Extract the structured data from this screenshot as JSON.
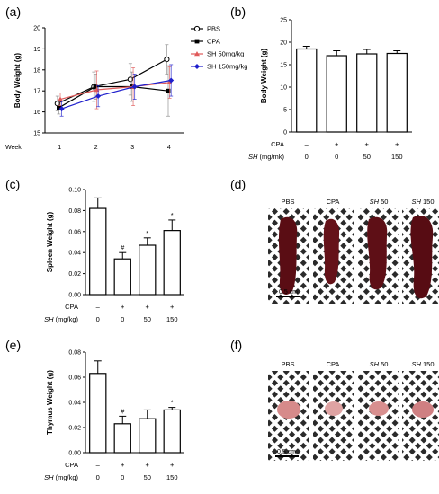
{
  "panel_labels": [
    "(a)",
    "(b)",
    "(c)",
    "(d)",
    "(e)",
    "(f)"
  ],
  "colors": {
    "PBS": "#000000",
    "CPA": "#000000",
    "SH50": "#e05a5a",
    "SH150": "#1f1fcc",
    "error_bar": "#8a8a8a",
    "grid_white": "#ffffff",
    "tissue_dark": "#5a0d14",
    "thymus_pink": "#d68a8a"
  },
  "chart_data": [
    {
      "id": "a",
      "type": "line",
      "ylabel": "Body Weight (g)",
      "x_axis_title": "Week",
      "x": [
        1,
        2,
        3,
        4
      ],
      "xlim": [
        0.6,
        4.4
      ],
      "ylim": [
        15,
        20
      ],
      "yticks": [
        15,
        16,
        17,
        18,
        19,
        20
      ],
      "series": [
        {
          "name": "PBS",
          "values": [
            16.4,
            17.2,
            17.55,
            18.5
          ],
          "errors": [
            0.35,
            0.7,
            0.75,
            0.7
          ],
          "marker": "open-circle",
          "color": "#000000"
        },
        {
          "name": "CPA",
          "values": [
            16.2,
            17.2,
            17.2,
            17.0
          ],
          "errors": [
            0.3,
            0.6,
            0.7,
            1.2
          ],
          "marker": "square",
          "color": "#000000"
        },
        {
          "name": "SH 50mg/kg",
          "values": [
            16.6,
            17.05,
            17.2,
            17.4
          ],
          "errors": [
            0.3,
            0.9,
            0.9,
            0.75
          ],
          "marker": "triangle",
          "color": "#e05a5a"
        },
        {
          "name": "SH 150mg/kg",
          "values": [
            16.15,
            16.75,
            17.2,
            17.5
          ],
          "errors": [
            0.35,
            0.5,
            0.6,
            0.75
          ],
          "marker": "diamond",
          "color": "#1f1fcc"
        }
      ],
      "legend_placement": "top-right"
    },
    {
      "id": "b",
      "type": "bar",
      "ylabel": "Body Weight (g)",
      "ylim": [
        0,
        25
      ],
      "yticks": [
        0,
        5,
        10,
        15,
        20,
        25
      ],
      "values": [
        18.5,
        17.0,
        17.4,
        17.5
      ],
      "errors": [
        0.6,
        1.1,
        1.0,
        0.6
      ],
      "significance": [
        "",
        "",
        "",
        ""
      ],
      "rows": [
        {
          "label": "CPA",
          "italic_prefix": "",
          "cells": [
            "–",
            "+",
            "+",
            "+"
          ]
        },
        {
          "label": " (mg/mk)",
          "italic_prefix": "SH",
          "cells": [
            "0",
            "0",
            "50",
            "150"
          ]
        }
      ]
    },
    {
      "id": "c",
      "type": "bar",
      "ylabel": "Spleen Weight (g)",
      "ylim": [
        0,
        0.1
      ],
      "yticks": [
        "0.00",
        "0.02",
        "0.04",
        "0.06",
        "0.08",
        "0.10"
      ],
      "values": [
        0.082,
        0.034,
        0.047,
        0.061
      ],
      "errors": [
        0.01,
        0.006,
        0.007,
        0.01
      ],
      "significance": [
        "",
        "#",
        "*",
        "*"
      ],
      "rows": [
        {
          "label": "CPA",
          "italic_prefix": "",
          "cells": [
            "–",
            "+",
            "+",
            "+"
          ]
        },
        {
          "label": " (mg/kg)",
          "italic_prefix": "SH",
          "cells": [
            "0",
            "0",
            "50",
            "150"
          ]
        }
      ]
    },
    {
      "id": "e",
      "type": "bar",
      "ylabel": "Thymus Weight (g)",
      "ylim": [
        0,
        0.08
      ],
      "yticks": [
        "0.00",
        "0.02",
        "0.04",
        "0.06",
        "0.08"
      ],
      "values": [
        0.063,
        0.023,
        0.027,
        0.034
      ],
      "errors": [
        0.01,
        0.006,
        0.007,
        0.002
      ],
      "significance": [
        "",
        "#",
        "",
        "*"
      ],
      "rows": [
        {
          "label": "CPA",
          "italic_prefix": "",
          "cells": [
            "–",
            "+",
            "+",
            "+"
          ]
        },
        {
          "label": " (mg/kg)",
          "italic_prefix": "SH",
          "cells": [
            "0",
            "0",
            "50",
            "150"
          ]
        }
      ]
    }
  ],
  "photos": {
    "spleen": {
      "labels": [
        {
          "italic": "",
          "text": "PBS"
        },
        {
          "italic": "",
          "text": "CPA"
        },
        {
          "italic": "SH",
          "text": " 50"
        },
        {
          "italic": "SH",
          "text": " 150"
        }
      ],
      "scale_bar": "0.5 cm"
    },
    "thymus": {
      "labels": [
        {
          "italic": "",
          "text": "PBS"
        },
        {
          "italic": "",
          "text": "CPA"
        },
        {
          "italic": "SH",
          "text": " 50"
        },
        {
          "italic": "SH",
          "text": " 150"
        }
      ],
      "scale_bar": "0.5 cm"
    }
  }
}
